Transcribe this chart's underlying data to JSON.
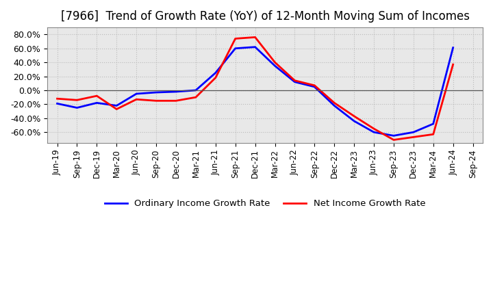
{
  "title": "[7966]  Trend of Growth Rate (YoY) of 12-Month Moving Sum of Incomes",
  "title_fontsize": 12,
  "background_color": "#ffffff",
  "plot_bg_color": "#e8e8e8",
  "grid_color": "#bbbbbb",
  "ordinary_color": "#0000ff",
  "net_color": "#ff0000",
  "ylim": [
    -0.75,
    0.9
  ],
  "yticks": [
    -0.6,
    -0.4,
    -0.2,
    0.0,
    0.2,
    0.4,
    0.6,
    0.8
  ],
  "labels": [
    "Jun-19",
    "Sep-19",
    "Dec-19",
    "Mar-20",
    "Jun-20",
    "Sep-20",
    "Dec-20",
    "Mar-21",
    "Jun-21",
    "Sep-21",
    "Dec-21",
    "Mar-22",
    "Jun-22",
    "Sep-22",
    "Dec-22",
    "Mar-23",
    "Jun-23",
    "Sep-23",
    "Dec-23",
    "Mar-24",
    "Jun-24",
    "Sep-24"
  ],
  "ordinary": [
    -0.19,
    -0.25,
    -0.18,
    -0.22,
    -0.05,
    -0.03,
    -0.02,
    0.0,
    0.25,
    0.6,
    0.62,
    0.35,
    0.12,
    0.05,
    -0.22,
    -0.44,
    -0.6,
    -0.65,
    -0.6,
    -0.48,
    0.61,
    null
  ],
  "net": [
    -0.12,
    -0.14,
    -0.08,
    -0.27,
    -0.13,
    -0.15,
    -0.15,
    -0.1,
    0.18,
    0.74,
    0.76,
    0.4,
    0.14,
    0.07,
    -0.18,
    -0.37,
    -0.55,
    -0.71,
    -0.67,
    -0.63,
    0.37,
    null
  ],
  "legend_ordinary": "Ordinary Income Growth Rate",
  "legend_net": "Net Income Growth Rate",
  "linewidth": 2.0
}
